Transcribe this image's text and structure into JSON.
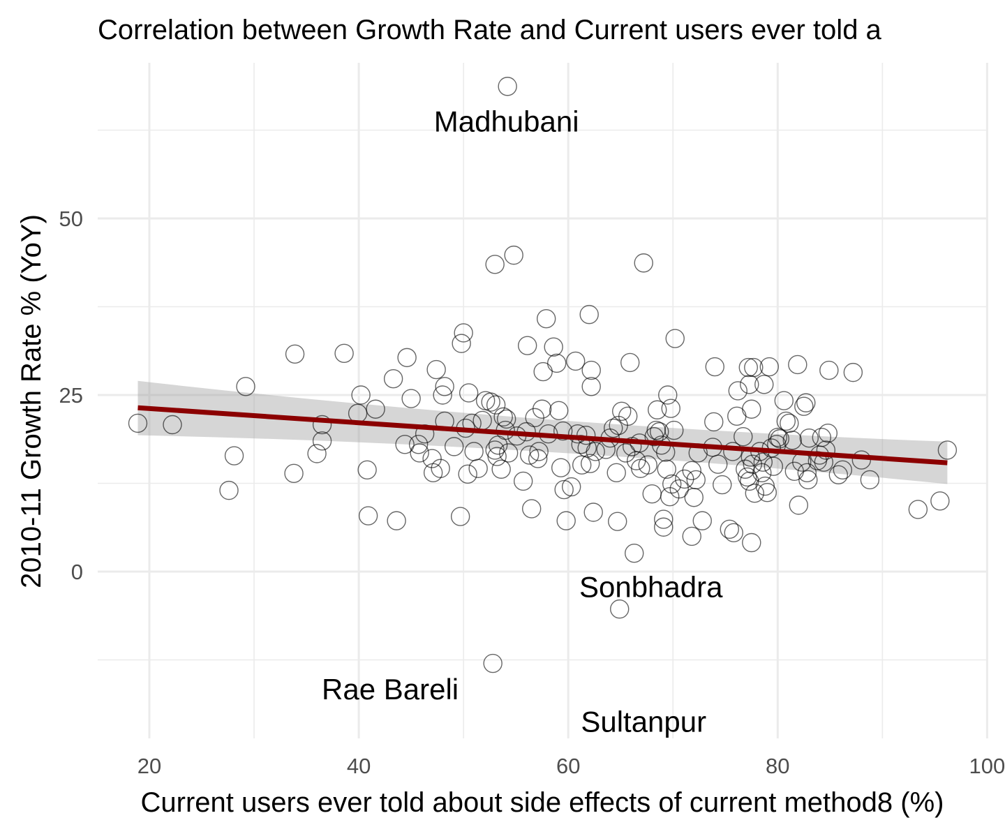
{
  "chart_data": {
    "type": "scatter",
    "title": "Correlation between Growth Rate and Current users ever told a",
    "xlabel": "Current users ever told about side effects of current method8 (%)",
    "ylabel": "2010-11 Growth Rate % (YoY)",
    "xlim": [
      13,
      100
    ],
    "ylim": [
      -24,
      72
    ],
    "x_ticks": [
      20,
      40,
      60,
      80,
      100
    ],
    "x_tick_labels": [
      "20",
      "40",
      "60",
      "80",
      "100"
    ],
    "y_ticks": [
      0,
      25,
      50
    ],
    "y_tick_labels": [
      "0",
      "25",
      "50"
    ],
    "grid": true,
    "colors": {
      "points": "#000000",
      "fit_line": "#8b0000",
      "confidence_band": "#999999"
    },
    "fit": {
      "type": "linear",
      "x": [
        18.9,
        96.2
      ],
      "y": [
        23.2,
        15.4
      ],
      "ci_upper": [
        27.0,
        18.4
      ],
      "ci_lower": [
        19.3,
        12.4
      ]
    },
    "annotations": [
      {
        "label": "Madhubani",
        "x": 54.1,
        "y": 63.8
      },
      {
        "label": "Sonbhadra",
        "x": 67.9,
        "y": -2.1
      },
      {
        "label": "Rae Bareli",
        "x": 43.0,
        "y": -16.6
      },
      {
        "label": "Sultanpur",
        "x": 67.2,
        "y": -21.2
      }
    ],
    "points": [
      [
        18.9,
        21.0
      ],
      [
        22.2,
        20.8
      ],
      [
        27.6,
        11.5
      ],
      [
        28.1,
        16.4
      ],
      [
        29.2,
        26.2
      ],
      [
        33.8,
        13.9
      ],
      [
        33.9,
        30.8
      ],
      [
        36.0,
        16.7
      ],
      [
        36.5,
        18.5
      ],
      [
        36.5,
        20.8
      ],
      [
        38.6,
        30.9
      ],
      [
        39.9,
        22.4
      ],
      [
        40.2,
        25.0
      ],
      [
        40.8,
        14.4
      ],
      [
        40.9,
        7.9
      ],
      [
        41.6,
        23.0
      ],
      [
        43.3,
        27.3
      ],
      [
        43.6,
        7.2
      ],
      [
        44.4,
        18.0
      ],
      [
        44.6,
        30.3
      ],
      [
        45.0,
        24.5
      ],
      [
        45.7,
        18.0
      ],
      [
        45.8,
        16.8
      ],
      [
        46.3,
        19.5
      ],
      [
        47.0,
        16.0
      ],
      [
        47.1,
        14.0
      ],
      [
        47.4,
        28.6
      ],
      [
        47.8,
        14.6
      ],
      [
        48.0,
        25.0
      ],
      [
        48.2,
        21.3
      ],
      [
        48.2,
        26.2
      ],
      [
        49.1,
        17.7
      ],
      [
        49.7,
        7.8
      ],
      [
        49.8,
        32.3
      ],
      [
        50.0,
        33.8
      ],
      [
        50.2,
        20.3
      ],
      [
        50.4,
        13.8
      ],
      [
        50.5,
        25.3
      ],
      [
        50.8,
        21.0
      ],
      [
        51.0,
        17.0
      ],
      [
        51.4,
        14.6
      ],
      [
        51.8,
        21.4
      ],
      [
        52.1,
        24.2
      ],
      [
        52.6,
        24.0
      ],
      [
        52.8,
        -13.0
      ],
      [
        53.0,
        17.2
      ],
      [
        53.0,
        43.5
      ],
      [
        53.1,
        23.6
      ],
      [
        53.2,
        16.3
      ],
      [
        53.3,
        17.9
      ],
      [
        53.6,
        14.5
      ],
      [
        53.8,
        21.9
      ],
      [
        54.0,
        20.0
      ],
      [
        54.1,
        21.6
      ],
      [
        54.2,
        68.7
      ],
      [
        54.3,
        16.8
      ],
      [
        54.8,
        44.8
      ],
      [
        55.1,
        19.2
      ],
      [
        55.7,
        12.8
      ],
      [
        56.0,
        19.8
      ],
      [
        56.1,
        32.0
      ],
      [
        56.3,
        16.5
      ],
      [
        56.5,
        8.9
      ],
      [
        56.8,
        21.8
      ],
      [
        57.1,
        16.0
      ],
      [
        57.2,
        17.0
      ],
      [
        57.5,
        23.0
      ],
      [
        57.6,
        28.3
      ],
      [
        57.9,
        35.8
      ],
      [
        58.1,
        19.5
      ],
      [
        58.6,
        31.8
      ],
      [
        58.9,
        29.5
      ],
      [
        59.1,
        22.8
      ],
      [
        59.3,
        14.7
      ],
      [
        59.5,
        19.9
      ],
      [
        59.6,
        11.6
      ],
      [
        59.8,
        7.2
      ],
      [
        60.3,
        12.0
      ],
      [
        60.7,
        29.8
      ],
      [
        60.9,
        19.5
      ],
      [
        61.2,
        18.0
      ],
      [
        61.3,
        15.1
      ],
      [
        61.7,
        19.3
      ],
      [
        61.8,
        17.5
      ],
      [
        62.0,
        36.4
      ],
      [
        62.1,
        15.3
      ],
      [
        62.2,
        28.5
      ],
      [
        62.2,
        26.2
      ],
      [
        62.4,
        8.4
      ],
      [
        62.6,
        17.0
      ],
      [
        63.6,
        17.3
      ],
      [
        64.0,
        18.9
      ],
      [
        64.3,
        20.3
      ],
      [
        64.6,
        14.0
      ],
      [
        64.7,
        7.1
      ],
      [
        64.8,
        20.7
      ],
      [
        64.9,
        -5.3
      ],
      [
        65.1,
        22.7
      ],
      [
        65.5,
        16.8
      ],
      [
        65.7,
        22.0
      ],
      [
        65.9,
        29.6
      ],
      [
        66.1,
        17.7
      ],
      [
        66.3,
        2.6
      ],
      [
        66.5,
        15.7
      ],
      [
        66.8,
        18.2
      ],
      [
        66.9,
        14.6
      ],
      [
        67.2,
        43.7
      ],
      [
        67.6,
        15.1
      ],
      [
        68.0,
        11.0
      ],
      [
        68.2,
        19.1
      ],
      [
        68.4,
        20.0
      ],
      [
        68.5,
        22.9
      ],
      [
        68.7,
        19.8
      ],
      [
        68.9,
        17.9
      ],
      [
        69.1,
        6.3
      ],
      [
        69.1,
        7.4
      ],
      [
        69.3,
        16.9
      ],
      [
        69.4,
        14.5
      ],
      [
        69.5,
        25.0
      ],
      [
        69.7,
        10.6
      ],
      [
        69.8,
        23.1
      ],
      [
        69.9,
        12.4
      ],
      [
        70.1,
        20.0
      ],
      [
        70.2,
        33.0
      ],
      [
        70.6,
        11.7
      ],
      [
        71.1,
        13.1
      ],
      [
        71.8,
        14.3
      ],
      [
        71.8,
        5.0
      ],
      [
        72.0,
        10.5
      ],
      [
        72.2,
        13.0
      ],
      [
        72.4,
        16.8
      ],
      [
        72.8,
        7.2
      ],
      [
        73.8,
        17.6
      ],
      [
        73.9,
        21.2
      ],
      [
        74.0,
        29.0
      ],
      [
        74.3,
        15.2
      ],
      [
        74.7,
        12.3
      ],
      [
        75.4,
        6.0
      ],
      [
        75.7,
        17.0
      ],
      [
        75.8,
        5.5
      ],
      [
        76.1,
        22.0
      ],
      [
        76.2,
        25.6
      ],
      [
        76.7,
        19.1
      ],
      [
        76.9,
        14.5
      ],
      [
        77.1,
        13.4
      ],
      [
        77.2,
        28.9
      ],
      [
        77.3,
        12.8
      ],
      [
        77.3,
        26.5
      ],
      [
        77.4,
        16.2
      ],
      [
        77.5,
        4.1
      ],
      [
        77.5,
        23.0
      ],
      [
        77.6,
        15.2
      ],
      [
        77.7,
        28.9
      ],
      [
        77.8,
        11.1
      ],
      [
        78.3,
        17.0
      ],
      [
        78.5,
        14.0
      ],
      [
        78.6,
        15.5
      ],
      [
        78.7,
        26.5
      ],
      [
        78.8,
        12.1
      ],
      [
        79.0,
        11.2
      ],
      [
        79.2,
        29.0
      ],
      [
        79.4,
        17.5
      ],
      [
        79.6,
        14.9
      ],
      [
        79.9,
        18.0
      ],
      [
        80.0,
        19.0
      ],
      [
        80.2,
        18.8
      ],
      [
        80.6,
        24.2
      ],
      [
        80.8,
        21.3
      ],
      [
        81.1,
        21.0
      ],
      [
        81.4,
        18.6
      ],
      [
        81.6,
        14.2
      ],
      [
        81.9,
        29.3
      ],
      [
        82.0,
        9.4
      ],
      [
        82.3,
        15.5
      ],
      [
        82.5,
        23.4
      ],
      [
        82.7,
        23.9
      ],
      [
        82.8,
        14.0
      ],
      [
        82.9,
        13.0
      ],
      [
        83.0,
        18.9
      ],
      [
        83.8,
        15.7
      ],
      [
        84.0,
        16.5
      ],
      [
        84.2,
        19.0
      ],
      [
        84.4,
        15.5
      ],
      [
        84.6,
        17.2
      ],
      [
        84.8,
        19.6
      ],
      [
        84.9,
        28.5
      ],
      [
        85.8,
        13.7
      ],
      [
        86.2,
        14.4
      ],
      [
        87.2,
        28.2
      ],
      [
        88.0,
        15.8
      ],
      [
        88.8,
        13.0
      ],
      [
        93.4,
        8.8
      ],
      [
        95.5,
        10.0
      ],
      [
        96.2,
        17.2
      ]
    ]
  }
}
